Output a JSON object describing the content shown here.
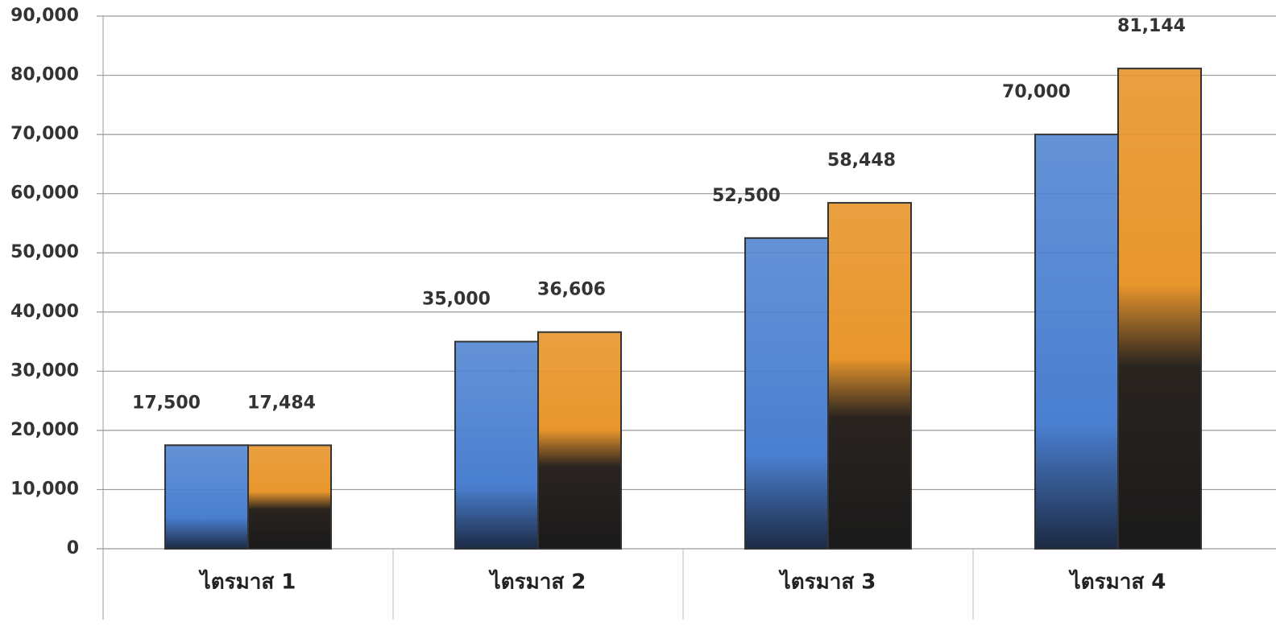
{
  "chart_data": {
    "type": "bar",
    "categories": [
      "ไตรมาส 1",
      "ไตรมาส 2",
      "ไตรมาส 3",
      "ไตรมาส 4"
    ],
    "series": [
      {
        "color": "#4a7fd0",
        "values": [
          17500,
          35000,
          52500,
          70000
        ],
        "value_labels": [
          "17,500",
          "35,000",
          "52,500",
          "70,000"
        ]
      },
      {
        "color": "#e8962c",
        "values": [
          17484,
          36606,
          58448,
          81144
        ],
        "value_labels": [
          "17,484",
          "36,606",
          "58,448",
          "81,144"
        ]
      }
    ],
    "ylim": [
      0,
      90000
    ],
    "yticks": [
      0,
      {
        "value": 10000,
        "label": "10,000"
      },
      {
        "value": 20000,
        "label": "20,000"
      },
      {
        "value": 30000,
        "label": "30,000"
      },
      {
        "value": 40000,
        "label": "40,000"
      },
      {
        "value": 50000,
        "label": "50,000"
      },
      {
        "value": 60000,
        "label": "60,000"
      },
      {
        "value": 70000,
        "label": "70,000"
      },
      {
        "value": 80000,
        "label": "80,000"
      },
      {
        "value": 90000,
        "label": "90,000"
      }
    ],
    "grid": true
  }
}
